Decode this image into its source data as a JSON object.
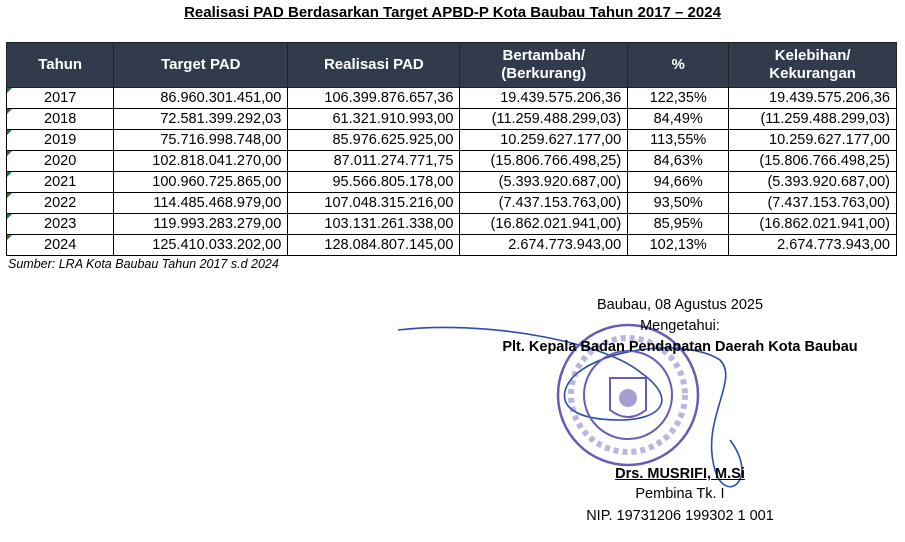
{
  "title": "Realisasi PAD Berdasarkan Target  APBD-P Kota Baubau Tahun 2017 – 2024",
  "table": {
    "headers": [
      "Tahun",
      "Target PAD",
      "Realisasi PAD",
      "Bertambah/\n(Berkurang)",
      "%",
      "Kelebihan/\nKekurangan"
    ],
    "rows": [
      [
        "2017",
        "86.960.301.451,00",
        "106.399.876.657,36",
        "19.439.575.206,36",
        "122,35%",
        "19.439.575.206,36"
      ],
      [
        "2018",
        "72.581.399.292,03",
        "61.321.910.993,00",
        "(11.259.488.299,03)",
        "84,49%",
        "(11.259.488.299,03)"
      ],
      [
        "2019",
        "75.716.998.748,00",
        "85.976.625.925,00",
        "10.259.627.177,00",
        "113,55%",
        "10.259.627.177,00"
      ],
      [
        "2020",
        "102.818.041.270,00",
        "87.011.274.771,75",
        "(15.806.766.498,25)",
        "84,63%",
        "(15.806.766.498,25)"
      ],
      [
        "2021",
        "100.960.725.865,00",
        "95.566.805.178,00",
        "(5.393.920.687,00)",
        "94,66%",
        "(5.393.920.687,00)"
      ],
      [
        "2022",
        "114.485.468.979,00",
        "107.048.315.216,00",
        "(7.437.153.763,00)",
        "93,50%",
        "(7.437.153.763,00)"
      ],
      [
        "2023",
        "119.993.283.279,00",
        "103.131.261.338,00",
        "(16.862.021.941,00)",
        "85,95%",
        "(16.862.021.941,00)"
      ],
      [
        "2024",
        "125.410.033.202,00",
        "128.084.807.145,00",
        "2.674.773.943,00",
        "102,13%",
        "2.674.773.943,00"
      ]
    ]
  },
  "source": "Sumber:  LRA Kota Baubau Tahun 2017 s.d 2024",
  "signature": {
    "place_date": "Baubau, 08 Agustus 2025",
    "acknowledged": "Mengetahui:",
    "position": "Plt. Kepala Badan Pendapatan Daerah Kota Baubau",
    "name": "Drs. MUSRIFI, M.Si",
    "rank": "Pembina Tk. I",
    "nip": "NIP. 19731206 199302 1 001"
  },
  "stamp": {
    "text": "PEMERINTAH KOTA BADAN PENDAPATAN DAERAH BAUBAU",
    "color": "#6b5bb8"
  }
}
